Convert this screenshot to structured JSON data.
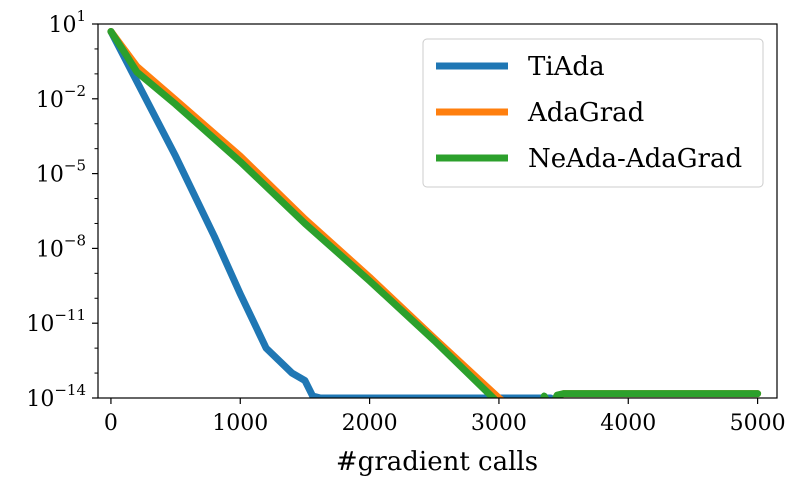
{
  "chart_data": {
    "type": "line",
    "title": "",
    "xlabel": "#gradient calls",
    "ylabel": "",
    "xlim": [
      -100,
      5150
    ],
    "ylim": [
      1e-14,
      10
    ],
    "yscale": "log",
    "grid": false,
    "legend_position": "top-right",
    "x_ticks": [
      0,
      1000,
      2000,
      3000,
      4000,
      5000
    ],
    "x_tick_labels": [
      "0",
      "1000",
      "2000",
      "3000",
      "4000",
      "5000"
    ],
    "y_ticks": [
      10.0,
      0.01,
      1e-05,
      1e-08,
      1e-11,
      1e-14
    ],
    "y_tick_labels": [
      {
        "base": "10",
        "exp": "1"
      },
      {
        "base": "10",
        "exp": "−2"
      },
      {
        "base": "10",
        "exp": "−5"
      },
      {
        "base": "10",
        "exp": "−8"
      },
      {
        "base": "10",
        "exp": "−11"
      },
      {
        "base": "10",
        "exp": "−14"
      }
    ],
    "series": [
      {
        "name": "TiAda",
        "color": "#1f77b4",
        "x": [
          0,
          200,
          500,
          800,
          1000,
          1200,
          1400,
          1500,
          1560,
          1620,
          2000,
          3000,
          3200,
          3400
        ],
        "y": [
          5,
          0.05,
          5e-05,
          3e-08,
          1.5e-10,
          1e-12,
          1e-13,
          5e-14,
          1.2e-14,
          1e-14,
          1e-14,
          1e-14,
          1e-14,
          1e-14
        ]
      },
      {
        "name": "AdaGrad",
        "color": "#ff7f0e",
        "x": [
          0,
          200,
          500,
          1000,
          1500,
          2000,
          2500,
          3000,
          3300,
          3400,
          3450,
          3500,
          4000,
          4500,
          5000
        ],
        "y": [
          5,
          0.2,
          0.009,
          5e-05,
          1.5e-07,
          7e-10,
          2.5e-12,
          1e-14,
          7e-16,
          2e-16,
          1.2e-14,
          1.5e-14,
          1.5e-14,
          1.5e-14,
          1.5e-14
        ]
      },
      {
        "name": "NeAda-AdaGrad",
        "color": "#2ca02c",
        "x": [
          0,
          100,
          200,
          500,
          1000,
          1500,
          2000,
          2500,
          3000,
          3300,
          3350,
          3400,
          3450,
          3500,
          4000,
          4500,
          5000
        ],
        "y": [
          5,
          0.8,
          0.12,
          0.006,
          3e-05,
          1e-07,
          5e-10,
          2e-12,
          6e-15,
          3e-16,
          1.2e-14,
          4e-15,
          1.3e-14,
          1.5e-14,
          1.5e-14,
          1.5e-14,
          1.5e-14
        ]
      }
    ]
  }
}
